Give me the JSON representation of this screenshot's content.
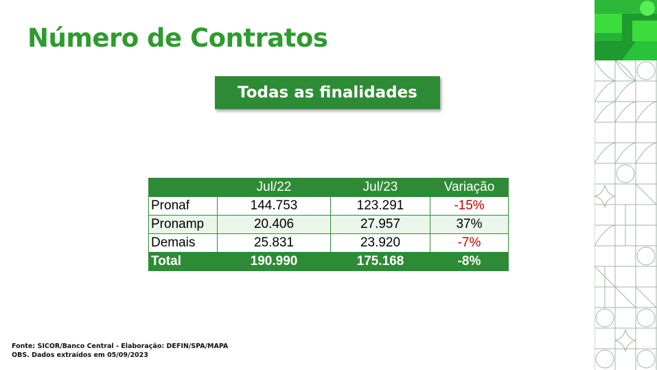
{
  "slide": {
    "title": "Número de Contratos",
    "subtitle": "Todas as finalidades"
  },
  "table": {
    "headers": [
      "",
      "Jul/22",
      "Jul/23",
      "Variação"
    ],
    "rows": [
      {
        "label": "Pronaf",
        "jul22": "144.753",
        "jul23": "123.291",
        "variacao": "-15%"
      },
      {
        "label": "Pronamp",
        "jul22": "20.406",
        "jul23": "27.957",
        "variacao": "37%"
      },
      {
        "label": "Demais",
        "jul22": "25.831",
        "jul23": "23.920",
        "variacao": "-7%"
      }
    ],
    "total": {
      "label": "Total",
      "jul22": "190.990",
      "jul23": "175.168",
      "variacao": "-8%"
    }
  },
  "footer": {
    "source": "Fonte: SICOR/Banco Central - Elaboração: DEFIN/SPA/MAPA",
    "note": "OBS. Dados extraídos em 05/09/2023"
  },
  "colors": {
    "brand_green": "#2e8b35",
    "title_green": "#2e9b2e",
    "negative_red": "#c00000",
    "bright_green": "#3ddc3d"
  }
}
